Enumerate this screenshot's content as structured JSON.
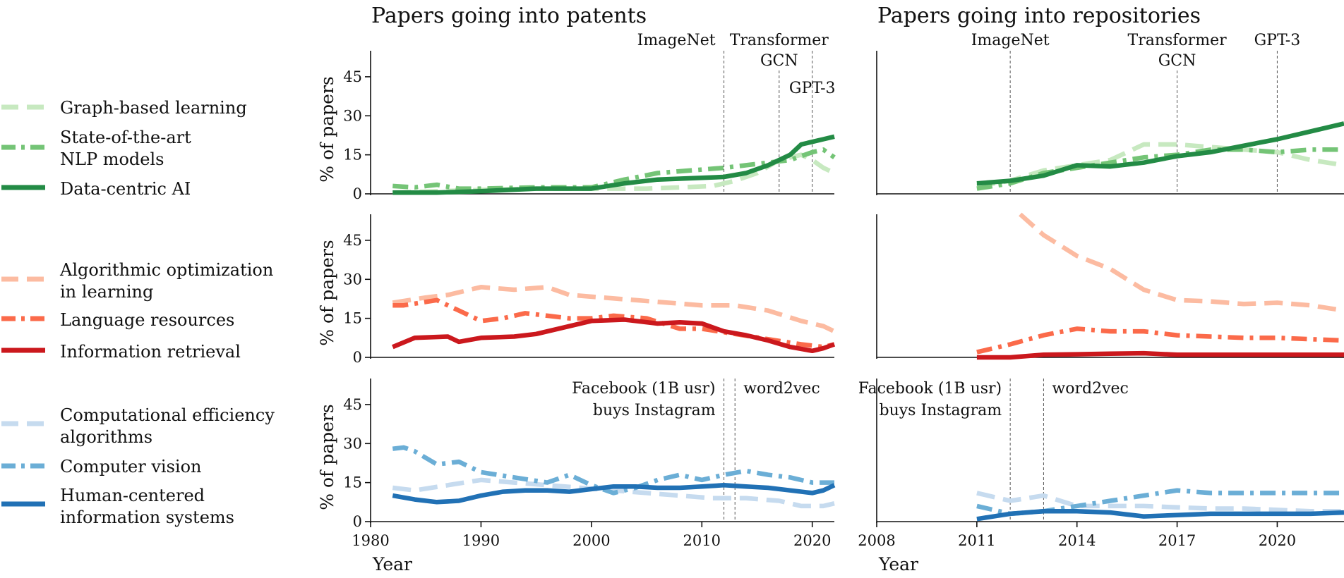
{
  "colors": {
    "green_light": "#c7e9c0",
    "green_mid": "#74c476",
    "green_dark": "#238b45",
    "red_light": "#fcbba1",
    "red_mid": "#fb6a4a",
    "red_dark": "#cb181d",
    "blue_light": "#c6dbef",
    "blue_mid": "#6baed6",
    "blue_dark": "#2171b5"
  },
  "chart_data": [
    {
      "type": "line",
      "panel": "patents-row1",
      "title": "Papers going into patents",
      "ylabel": "% of papers",
      "ylim": [
        0,
        55
      ],
      "yticks": [
        0,
        15,
        30,
        45
      ],
      "xlim": [
        1980,
        2022
      ],
      "events": [
        {
          "x": 2012,
          "label": [
            "ImageNet"
          ]
        },
        {
          "x": 2017,
          "label": [
            "Transformer",
            "GCN"
          ]
        },
        {
          "x": 2020,
          "label": [
            "GPT-3"
          ]
        }
      ],
      "series": [
        {
          "name": "Graph-based learning",
          "style": "dashed",
          "color_key": "green_light",
          "x": [
            1982,
            1986,
            1990,
            1995,
            2000,
            2005,
            2008,
            2011,
            2013,
            2015,
            2017,
            2019,
            2020,
            2021,
            2022
          ],
          "y": [
            0.5,
            1,
            1.5,
            2,
            2,
            2,
            2.5,
            3,
            5,
            8,
            13,
            15,
            13,
            10,
            8
          ]
        },
        {
          "name": "State-of-the-art NLP models",
          "style": "dashdot",
          "color_key": "green_mid",
          "x": [
            1982,
            1984,
            1986,
            1988,
            1990,
            1995,
            2000,
            2003,
            2006,
            2009,
            2012,
            2014,
            2016,
            2018,
            2020,
            2021,
            2022
          ],
          "y": [
            3,
            2.5,
            3.5,
            2,
            2,
            2.5,
            2.5,
            5.5,
            8,
            9,
            10,
            11,
            12,
            13,
            16,
            17,
            14
          ]
        },
        {
          "name": "Data-centric AI",
          "style": "solid",
          "color_key": "green_dark",
          "x": [
            1982,
            1986,
            1990,
            1995,
            2000,
            2003,
            2006,
            2009,
            2012,
            2014,
            2016,
            2018,
            2019,
            2020,
            2021,
            2022
          ],
          "y": [
            0.5,
            0.5,
            1,
            2,
            2,
            4,
            5.5,
            6,
            6.5,
            8,
            11,
            15,
            19,
            20,
            21,
            22
          ]
        }
      ]
    },
    {
      "type": "line",
      "panel": "repositories-row1",
      "title": "Papers going into repositories",
      "ylim": [
        0,
        55
      ],
      "xlim": [
        2008,
        2022
      ],
      "events": [
        {
          "x": 2012,
          "label": [
            "ImageNet"
          ]
        },
        {
          "x": 2017,
          "label": [
            "Transformer",
            "GCN"
          ]
        },
        {
          "x": 2020,
          "label": [
            "GPT-3"
          ]
        }
      ],
      "series": [
        {
          "name": "Graph-based learning",
          "style": "dashed",
          "color_key": "green_light",
          "x": [
            2011,
            2012,
            2013,
            2014,
            2015,
            2016,
            2017,
            2018,
            2019,
            2020,
            2021,
            2022
          ],
          "y": [
            3,
            5,
            9,
            11,
            13,
            19,
            19,
            18,
            17,
            16,
            13,
            11
          ]
        },
        {
          "name": "State-of-the-art NLP models",
          "style": "dashdot",
          "color_key": "green_mid",
          "x": [
            2011,
            2012,
            2013,
            2014,
            2015,
            2016,
            2017,
            2018,
            2019,
            2020,
            2021,
            2022
          ],
          "y": [
            2,
            4,
            8,
            10,
            12,
            14,
            15,
            17,
            17,
            16,
            17,
            17
          ]
        },
        {
          "name": "Data-centric AI",
          "style": "solid",
          "color_key": "green_dark",
          "x": [
            2011,
            2012,
            2013,
            2014,
            2015,
            2016,
            2017,
            2018,
            2019,
            2020,
            2021,
            2022
          ],
          "y": [
            4,
            5,
            7,
            11,
            10.5,
            12,
            14.5,
            16,
            18.5,
            21,
            24,
            27
          ]
        }
      ]
    },
    {
      "type": "line",
      "panel": "patents-row2",
      "ylabel": "% of papers",
      "ylim": [
        0,
        55
      ],
      "yticks": [
        0,
        15,
        30,
        45
      ],
      "xlim": [
        1980,
        2022
      ],
      "series": [
        {
          "name": "Algorithmic optimization in learning",
          "style": "dashed",
          "color_key": "red_light",
          "x": [
            1982,
            1985,
            1987,
            1990,
            1993,
            1996,
            1998,
            2001,
            2004,
            2007,
            2010,
            2013,
            2016,
            2019,
            2021,
            2022
          ],
          "y": [
            21,
            23,
            24,
            27,
            26,
            27,
            24,
            23,
            22,
            21,
            20,
            20,
            18,
            14,
            12,
            10
          ]
        },
        {
          "name": "Language resources",
          "style": "dashdot",
          "color_key": "red_mid",
          "x": [
            1982,
            1983,
            1986,
            1988,
            1990,
            1992,
            1994,
            1996,
            1998,
            2000,
            2002,
            2005,
            2008,
            2010,
            2013,
            2016,
            2019,
            2021,
            2022
          ],
          "y": [
            20,
            20,
            22,
            18,
            14,
            15,
            17,
            16,
            15,
            15,
            16,
            15,
            11,
            11,
            9,
            7,
            5,
            4,
            5
          ]
        },
        {
          "name": "Information retrieval",
          "style": "solid",
          "color_key": "red_dark",
          "x": [
            1982,
            1984,
            1987,
            1988,
            1990,
            1993,
            1995,
            1997,
            2000,
            2003,
            2006,
            2008,
            2010,
            2012,
            2014,
            2016,
            2018,
            2020,
            2021,
            2022
          ],
          "y": [
            4,
            7.5,
            8,
            6,
            7.5,
            8,
            9,
            11,
            14,
            14.5,
            13,
            13.5,
            13,
            10,
            8.5,
            6.5,
            4,
            2.5,
            3.5,
            5
          ]
        }
      ]
    },
    {
      "type": "line",
      "panel": "repositories-row2",
      "ylim": [
        0,
        55
      ],
      "xlim": [
        2008,
        2022
      ],
      "series": [
        {
          "name": "Algorithmic optimization in learning",
          "style": "dashed",
          "color_key": "red_light",
          "x": [
            2012.3,
            2013,
            2014,
            2015,
            2016,
            2017,
            2018,
            2019,
            2020,
            2021,
            2022
          ],
          "y": [
            55,
            47,
            39,
            34,
            26,
            22,
            21.5,
            20.5,
            21,
            20,
            18
          ]
        },
        {
          "name": "Language resources",
          "style": "dashdot",
          "color_key": "red_mid",
          "x": [
            2011,
            2012,
            2013,
            2014,
            2015,
            2016,
            2017,
            2018,
            2019,
            2020,
            2021,
            2022
          ],
          "y": [
            2,
            5,
            8.5,
            11,
            10,
            10,
            8.5,
            8,
            7.5,
            7.5,
            7,
            6.5
          ]
        },
        {
          "name": "Information retrieval",
          "style": "solid",
          "color_key": "red_dark",
          "x": [
            2011,
            2012,
            2013,
            2014,
            2015,
            2016,
            2017,
            2018,
            2019,
            2020,
            2021,
            2022
          ],
          "y": [
            0,
            0,
            1,
            1.2,
            1.4,
            1.6,
            1,
            1,
            1,
            1,
            1,
            1
          ]
        }
      ]
    },
    {
      "type": "line",
      "panel": "patents-row3",
      "ylabel": "% of papers",
      "xlabel": "Year",
      "ylim": [
        0,
        55
      ],
      "yticks": [
        0,
        15,
        30,
        45
      ],
      "xlim": [
        1980,
        2022
      ],
      "xticks": [
        1980,
        1990,
        2000,
        2010,
        2020
      ],
      "events": [
        {
          "x": 2012,
          "label": [
            "Facebook (1B usr)",
            "buys Instagram"
          ]
        },
        {
          "x": 2013,
          "label": [
            "word2vec"
          ]
        }
      ],
      "series": [
        {
          "name": "Computational efficiency algorithms",
          "style": "dashed",
          "color_key": "blue_light",
          "x": [
            1982,
            1984,
            1987,
            1990,
            1993,
            1996,
            1999,
            2002,
            2005,
            2008,
            2011,
            2014,
            2017,
            2019,
            2021,
            2022
          ],
          "y": [
            13,
            12,
            14,
            16,
            15,
            14,
            13,
            12,
            11,
            10,
            9,
            9,
            8,
            6,
            6,
            7
          ]
        },
        {
          "name": "Computer vision",
          "style": "dashdot",
          "color_key": "blue_mid",
          "x": [
            1982,
            1983,
            1984,
            1986,
            1988,
            1990,
            1993,
            1996,
            1998,
            2000,
            2002,
            2004,
            2006,
            2008,
            2010,
            2012,
            2014,
            2016,
            2018,
            2020,
            2022
          ],
          "y": [
            28,
            28.5,
            27,
            22,
            23,
            19,
            17,
            15,
            18,
            14,
            11,
            13,
            16,
            18,
            16,
            18,
            19.5,
            18,
            17,
            15,
            15
          ]
        },
        {
          "name": "Human-centered information systems",
          "style": "solid",
          "color_key": "blue_dark",
          "x": [
            1982,
            1984,
            1986,
            1988,
            1990,
            1992,
            1994,
            1996,
            1998,
            2000,
            2002,
            2004,
            2006,
            2008,
            2010,
            2012,
            2014,
            2016,
            2018,
            2020,
            2021,
            2022
          ],
          "y": [
            10,
            8.5,
            7.5,
            8,
            10,
            11.5,
            12,
            12,
            11.5,
            12.5,
            13.5,
            13.5,
            13,
            13,
            13.5,
            14,
            13.5,
            13,
            12,
            11,
            12,
            14
          ]
        }
      ]
    },
    {
      "type": "line",
      "panel": "repositories-row3",
      "xlabel": "Year",
      "ylim": [
        0,
        55
      ],
      "xlim": [
        2008,
        2022
      ],
      "xticks": [
        2008,
        2011,
        2014,
        2017,
        2020
      ],
      "events": [
        {
          "x": 2012,
          "label": [
            "Facebook (1B usr)",
            "buys Instagram"
          ]
        },
        {
          "x": 2013,
          "label": [
            "word2vec"
          ]
        }
      ],
      "series": [
        {
          "name": "Computational efficiency algorithms",
          "style": "dashed",
          "color_key": "blue_light",
          "x": [
            2011,
            2012,
            2013,
            2014,
            2015,
            2016,
            2017,
            2018,
            2019,
            2020,
            2021,
            2022
          ],
          "y": [
            11,
            8,
            10,
            6,
            6,
            6,
            5.5,
            5,
            5,
            4.5,
            4,
            4
          ]
        },
        {
          "name": "Computer vision",
          "style": "dashdot",
          "color_key": "blue_mid",
          "x": [
            2011,
            2012,
            2013,
            2014,
            2015,
            2016,
            2017,
            2018,
            2019,
            2020,
            2021,
            2022
          ],
          "y": [
            6,
            3,
            4,
            6,
            8,
            10,
            12,
            11,
            11,
            11,
            11,
            11
          ]
        },
        {
          "name": "Human-centered information systems",
          "style": "solid",
          "color_key": "blue_dark",
          "x": [
            2011,
            2012,
            2013,
            2014,
            2015,
            2016,
            2017,
            2018,
            2019,
            2020,
            2021,
            2022
          ],
          "y": [
            1,
            3,
            4,
            4,
            3.5,
            2,
            2.5,
            3,
            3,
            3,
            3,
            3.5
          ]
        }
      ]
    }
  ],
  "legend": [
    {
      "lines": [
        "Graph-based learning"
      ],
      "style": "dashed",
      "color_key": "green_light"
    },
    {
      "lines": [
        "State-of-the-art",
        "NLP models"
      ],
      "style": "dashdot",
      "color_key": "green_mid"
    },
    {
      "lines": [
        "Data-centric AI"
      ],
      "style": "solid",
      "color_key": "green_dark"
    },
    {
      "lines": [
        "Algorithmic optimization",
        "in learning"
      ],
      "style": "dashed",
      "color_key": "red_light"
    },
    {
      "lines": [
        "Language resources"
      ],
      "style": "dashdot",
      "color_key": "red_mid"
    },
    {
      "lines": [
        "Information retrieval"
      ],
      "style": "solid",
      "color_key": "red_dark"
    },
    {
      "lines": [
        "Computational efficiency",
        "algorithms"
      ],
      "style": "dashed",
      "color_key": "blue_light"
    },
    {
      "lines": [
        "Computer vision"
      ],
      "style": "dashdot",
      "color_key": "blue_mid"
    },
    {
      "lines": [
        "Human-centered",
        "information systems"
      ],
      "style": "solid",
      "color_key": "blue_dark"
    }
  ]
}
